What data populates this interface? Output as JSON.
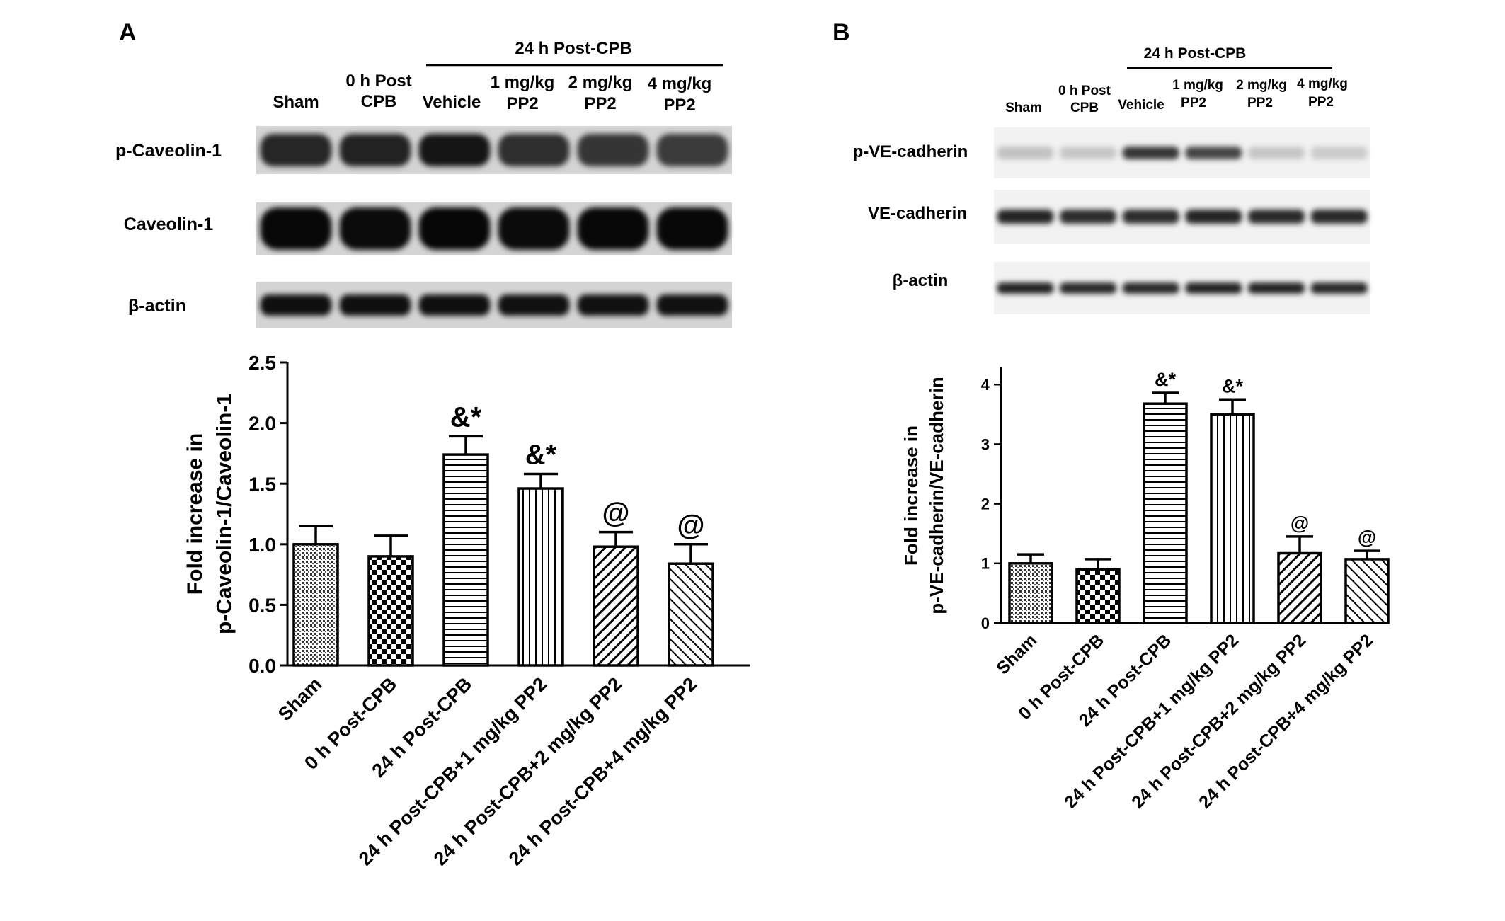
{
  "panels": [
    {
      "letter": "A",
      "header": "24 h  Post-CPB",
      "lanes": [
        [
          "Sham"
        ],
        [
          "0 h Post",
          "CPB"
        ],
        [
          "Vehicle"
        ],
        [
          "1 mg/kg",
          "PP2"
        ],
        [
          "2 mg/kg",
          "PP2"
        ],
        [
          "4 mg/kg",
          "PP2"
        ]
      ],
      "blots": [
        {
          "label": "p-Caveolin-1",
          "band": [
            0.82,
            0.84,
            0.9,
            0.78,
            0.75,
            0.72
          ]
        },
        {
          "label": "Caveolin-1",
          "band": [
            0.96,
            0.95,
            0.97,
            0.95,
            0.96,
            0.96
          ]
        },
        {
          "label": "β-actin",
          "band": [
            0.93,
            0.93,
            0.93,
            0.92,
            0.92,
            0.92
          ]
        }
      ]
    },
    {
      "letter": "B",
      "header": "24 h  Post-CPB",
      "lanes": [
        [
          "Sham"
        ],
        [
          "0 h Post",
          "CPB"
        ],
        [
          "Vehicle"
        ],
        [
          "1 mg/kg",
          "PP2"
        ],
        [
          "2 mg/kg",
          "PP2"
        ],
        [
          "4 mg/kg",
          "PP2"
        ]
      ],
      "blots": [
        {
          "label": "p-VE-cadherin",
          "band": [
            0.2,
            0.18,
            0.78,
            0.72,
            0.18,
            0.16
          ]
        },
        {
          "label": "VE-cadherin",
          "band": [
            0.85,
            0.82,
            0.82,
            0.85,
            0.83,
            0.83
          ]
        },
        {
          "label": "β-actin",
          "band": [
            0.86,
            0.84,
            0.84,
            0.86,
            0.86,
            0.84
          ]
        }
      ]
    }
  ],
  "chart_data": [
    {
      "type": "bar",
      "ylabel_lines": [
        "Fold increase in",
        "p-Caveolin-1/Caveolin-1"
      ],
      "categories": [
        "Sham",
        "0 h Post-CPB",
        "24  h Post-CPB",
        "24  h Post-CPB+1 mg/kg PP2",
        "24  h Post-CPB+2 mg/kg PP2",
        "24  h Post-CPB+4 mg/kg PP2"
      ],
      "values": [
        1.0,
        0.9,
        1.74,
        1.46,
        0.98,
        0.84
      ],
      "errors": [
        0.15,
        0.17,
        0.15,
        0.12,
        0.12,
        0.16
      ],
      "annotations": [
        "",
        "",
        "&*",
        "&*",
        "@",
        "@"
      ],
      "patterns": [
        "dots",
        "checker",
        "hlines",
        "vlines",
        "diag-right",
        "diag-left"
      ],
      "ylim": [
        0,
        2.5
      ],
      "yticks": [
        0,
        0.5,
        1.0,
        1.5,
        2.0,
        2.5
      ],
      "ytick_labels": [
        "0.0",
        "0.5",
        "1.0",
        "1.5",
        "2.0",
        "2.5"
      ]
    },
    {
      "type": "bar",
      "ylabel_lines": [
        "Fold increase in",
        "p-VE-cadherin/VE-cadherin"
      ],
      "categories": [
        "Sham",
        "0 h Post-CPB",
        "24  h Post-CPB",
        "24  h Post-CPB+1 mg/kg PP2",
        "24  h Post-CPB+2 mg/kg PP2",
        "24  h Post-CPB+4 mg/kg PP2"
      ],
      "values": [
        1.0,
        0.9,
        3.68,
        3.5,
        1.17,
        1.07
      ],
      "errors": [
        0.15,
        0.17,
        0.18,
        0.25,
        0.28,
        0.14
      ],
      "annotations": [
        "",
        "",
        "&*",
        "&*",
        "@",
        "@"
      ],
      "patterns": [
        "dots",
        "checker",
        "hlines",
        "vlines",
        "diag-right",
        "diag-left"
      ],
      "ylim": [
        0,
        4.3
      ],
      "yticks": [
        0,
        1,
        2,
        3,
        4
      ],
      "ytick_labels": [
        "0",
        "1",
        "2",
        "3",
        "4"
      ]
    }
  ]
}
